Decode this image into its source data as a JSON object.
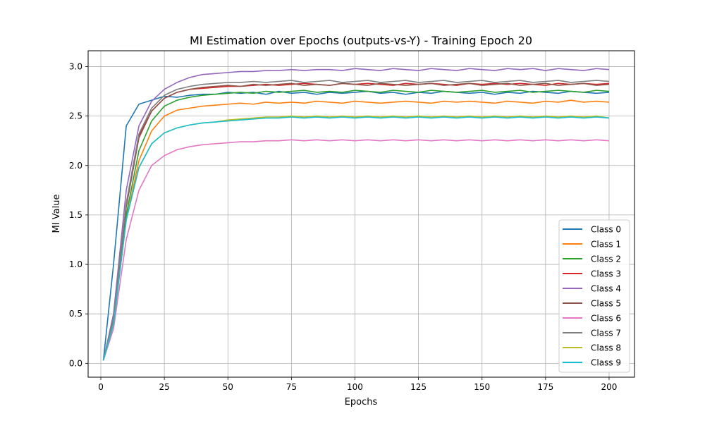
{
  "chart_data": {
    "type": "line",
    "title": "MI Estimation over Epochs (outputs-vs-Y) - Training Epoch 20",
    "xlabel": "Epochs",
    "ylabel": "MI Value",
    "xlim": [
      -5,
      210
    ],
    "ylim": [
      -0.14,
      3.16
    ],
    "xticks": [
      0,
      25,
      50,
      75,
      100,
      125,
      150,
      175,
      200
    ],
    "yticks": [
      0.0,
      0.5,
      1.0,
      1.5,
      2.0,
      2.5,
      3.0
    ],
    "xtick_labels": [
      "0",
      "25",
      "50",
      "75",
      "100",
      "125",
      "150",
      "175",
      "200"
    ],
    "ytick_labels": [
      "0.0",
      "0.5",
      "1.0",
      "1.5",
      "2.0",
      "2.5",
      "3.0"
    ],
    "grid": true,
    "legend_position": "lower-right",
    "x": [
      1,
      5,
      10,
      15,
      20,
      25,
      30,
      35,
      40,
      45,
      50,
      55,
      60,
      65,
      70,
      75,
      80,
      85,
      90,
      95,
      100,
      105,
      110,
      115,
      120,
      125,
      130,
      135,
      140,
      145,
      150,
      155,
      160,
      165,
      170,
      175,
      180,
      185,
      190,
      195,
      200
    ],
    "series": [
      {
        "name": "Class 0",
        "color": "#1f77b4",
        "values": [
          0.03,
          1.0,
          2.4,
          2.62,
          2.66,
          2.7,
          2.69,
          2.71,
          2.72,
          2.72,
          2.74,
          2.73,
          2.74,
          2.72,
          2.75,
          2.73,
          2.74,
          2.72,
          2.74,
          2.73,
          2.74,
          2.75,
          2.73,
          2.74,
          2.72,
          2.74,
          2.73,
          2.75,
          2.74,
          2.73,
          2.74,
          2.72,
          2.74,
          2.73,
          2.75,
          2.74,
          2.73,
          2.75,
          2.74,
          2.73,
          2.74
        ]
      },
      {
        "name": "Class 1",
        "color": "#ff7f0e",
        "values": [
          0.03,
          0.42,
          1.45,
          2.05,
          2.35,
          2.5,
          2.56,
          2.58,
          2.6,
          2.61,
          2.62,
          2.63,
          2.62,
          2.64,
          2.63,
          2.64,
          2.63,
          2.65,
          2.64,
          2.63,
          2.65,
          2.64,
          2.63,
          2.64,
          2.65,
          2.64,
          2.63,
          2.65,
          2.64,
          2.65,
          2.64,
          2.63,
          2.65,
          2.64,
          2.63,
          2.65,
          2.64,
          2.66,
          2.64,
          2.65,
          2.64
        ]
      },
      {
        "name": "Class 2",
        "color": "#2ca02c",
        "values": [
          0.03,
          0.4,
          1.5,
          2.15,
          2.45,
          2.6,
          2.66,
          2.69,
          2.71,
          2.72,
          2.73,
          2.74,
          2.73,
          2.75,
          2.74,
          2.75,
          2.76,
          2.74,
          2.75,
          2.74,
          2.76,
          2.75,
          2.74,
          2.76,
          2.75,
          2.74,
          2.76,
          2.75,
          2.74,
          2.75,
          2.76,
          2.74,
          2.75,
          2.76,
          2.74,
          2.75,
          2.76,
          2.75,
          2.74,
          2.76,
          2.75
        ]
      },
      {
        "name": "Class 3",
        "color": "#d62728",
        "values": [
          0.03,
          0.45,
          1.6,
          2.3,
          2.55,
          2.68,
          2.74,
          2.77,
          2.78,
          2.79,
          2.8,
          2.8,
          2.81,
          2.82,
          2.81,
          2.82,
          2.83,
          2.82,
          2.81,
          2.83,
          2.82,
          2.83,
          2.82,
          2.81,
          2.83,
          2.82,
          2.83,
          2.82,
          2.81,
          2.83,
          2.82,
          2.83,
          2.82,
          2.83,
          2.82,
          2.81,
          2.83,
          2.82,
          2.83,
          2.82,
          2.83
        ]
      },
      {
        "name": "Class 4",
        "color": "#9467bd",
        "values": [
          0.03,
          0.5,
          1.75,
          2.4,
          2.65,
          2.77,
          2.84,
          2.89,
          2.92,
          2.93,
          2.94,
          2.95,
          2.95,
          2.96,
          2.96,
          2.97,
          2.96,
          2.97,
          2.97,
          2.96,
          2.98,
          2.97,
          2.96,
          2.98,
          2.97,
          2.96,
          2.98,
          2.97,
          2.96,
          2.98,
          2.97,
          2.96,
          2.98,
          2.97,
          2.98,
          2.96,
          2.98,
          2.97,
          2.96,
          2.98,
          2.97
        ]
      },
      {
        "name": "Class 5",
        "color": "#8c564b",
        "values": [
          0.03,
          0.44,
          1.58,
          2.28,
          2.55,
          2.68,
          2.74,
          2.77,
          2.79,
          2.8,
          2.81,
          2.8,
          2.82,
          2.81,
          2.82,
          2.83,
          2.81,
          2.82,
          2.81,
          2.83,
          2.82,
          2.81,
          2.83,
          2.82,
          2.81,
          2.82,
          2.83,
          2.81,
          2.82,
          2.83,
          2.81,
          2.82,
          2.83,
          2.81,
          2.82,
          2.83,
          2.81,
          2.82,
          2.83,
          2.81,
          2.82
        ]
      },
      {
        "name": "Class 6",
        "color": "#e377c2",
        "values": [
          0.03,
          0.35,
          1.25,
          1.75,
          2.0,
          2.1,
          2.16,
          2.19,
          2.21,
          2.22,
          2.23,
          2.24,
          2.24,
          2.25,
          2.25,
          2.26,
          2.25,
          2.26,
          2.25,
          2.26,
          2.25,
          2.26,
          2.25,
          2.26,
          2.25,
          2.26,
          2.25,
          2.26,
          2.25,
          2.26,
          2.25,
          2.26,
          2.25,
          2.26,
          2.25,
          2.26,
          2.25,
          2.26,
          2.25,
          2.26,
          2.25
        ]
      },
      {
        "name": "Class 7",
        "color": "#7f7f7f",
        "values": [
          0.03,
          0.46,
          1.62,
          2.32,
          2.58,
          2.71,
          2.77,
          2.8,
          2.82,
          2.83,
          2.84,
          2.84,
          2.85,
          2.84,
          2.85,
          2.86,
          2.84,
          2.85,
          2.86,
          2.84,
          2.85,
          2.86,
          2.84,
          2.85,
          2.86,
          2.84,
          2.85,
          2.86,
          2.84,
          2.85,
          2.86,
          2.84,
          2.85,
          2.86,
          2.84,
          2.85,
          2.86,
          2.84,
          2.85,
          2.86,
          2.85
        ]
      },
      {
        "name": "Class 8",
        "color": "#bcbd22",
        "values": [
          0.03,
          0.4,
          1.45,
          1.98,
          2.22,
          2.33,
          2.38,
          2.41,
          2.43,
          2.44,
          2.46,
          2.47,
          2.48,
          2.49,
          2.49,
          2.5,
          2.49,
          2.5,
          2.49,
          2.5,
          2.49,
          2.5,
          2.49,
          2.5,
          2.49,
          2.5,
          2.49,
          2.5,
          2.49,
          2.5,
          2.49,
          2.5,
          2.49,
          2.5,
          2.49,
          2.5,
          2.49,
          2.5,
          2.49,
          2.5,
          2.48
        ]
      },
      {
        "name": "Class 9",
        "color": "#17becf",
        "values": [
          0.03,
          0.4,
          1.45,
          1.98,
          2.22,
          2.33,
          2.38,
          2.41,
          2.43,
          2.44,
          2.45,
          2.46,
          2.47,
          2.48,
          2.48,
          2.49,
          2.48,
          2.49,
          2.48,
          2.49,
          2.48,
          2.49,
          2.48,
          2.49,
          2.48,
          2.49,
          2.48,
          2.49,
          2.48,
          2.49,
          2.48,
          2.49,
          2.48,
          2.49,
          2.48,
          2.49,
          2.48,
          2.49,
          2.48,
          2.49,
          2.48
        ]
      }
    ]
  }
}
